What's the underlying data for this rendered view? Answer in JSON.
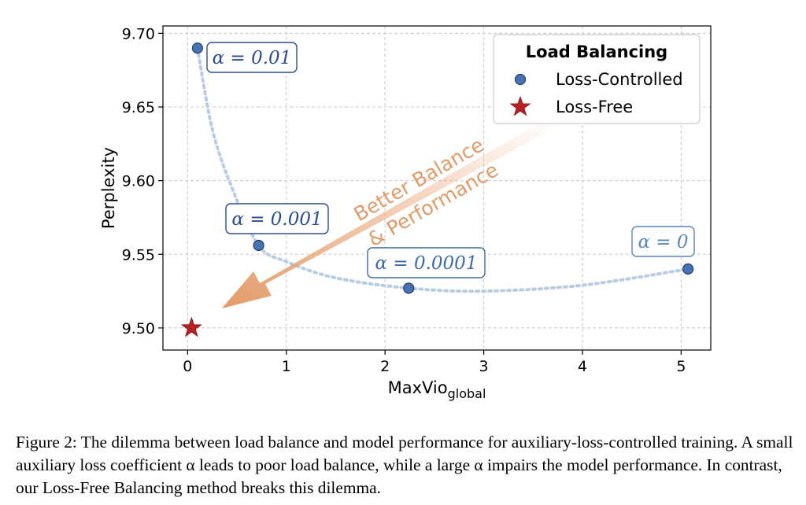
{
  "chart_data": {
    "type": "scatter",
    "xlabel": "MaxVio",
    "xlabel_sub": "global",
    "ylabel": "Perplexity",
    "xlim": [
      -0.25,
      5.3
    ],
    "ylim": [
      9.485,
      9.705
    ],
    "xticks": [
      0,
      1,
      2,
      3,
      4,
      5
    ],
    "yticks": [
      9.5,
      9.55,
      9.6,
      9.65,
      9.7
    ],
    "xtick_labels": [
      "0",
      "1",
      "2",
      "3",
      "4",
      "5"
    ],
    "ytick_labels": [
      "9.50",
      "9.55",
      "9.60",
      "9.65",
      "9.70"
    ],
    "grid": true,
    "legend_title": "Load Balancing",
    "legend_position": "top-right",
    "series": [
      {
        "name": "Loss-Controlled",
        "marker": "circle",
        "color": "#4a72b0",
        "points": [
          {
            "x": 0.1,
            "y": 9.69,
            "label": "α = 0.01"
          },
          {
            "x": 0.72,
            "y": 9.556,
            "label": "α = 0.001"
          },
          {
            "x": 2.24,
            "y": 9.527,
            "label": "α = 0.0001"
          },
          {
            "x": 5.07,
            "y": 9.54,
            "label": "α = 0"
          }
        ]
      },
      {
        "name": "Loss-Free",
        "marker": "star",
        "color": "#b52025",
        "points": [
          {
            "x": 0.04,
            "y": 9.5
          }
        ]
      }
    ],
    "trend_curve": {
      "style": "dotted",
      "color": "#b8cde4",
      "points": [
        [
          0.1,
          9.69
        ],
        [
          0.25,
          9.635
        ],
        [
          0.45,
          9.595
        ],
        [
          0.72,
          9.556
        ],
        [
          1.0,
          9.545
        ],
        [
          1.5,
          9.534
        ],
        [
          2.24,
          9.527
        ],
        [
          3.0,
          9.525
        ],
        [
          4.0,
          9.529
        ],
        [
          5.07,
          9.54
        ]
      ]
    },
    "arrow_annotation": {
      "text_line1": "Better Balance",
      "text_line2": "& Performance",
      "color": "#e29a68"
    }
  },
  "caption": "Figure 2: The dilemma between load balance and model performance for auxiliary-loss-controlled training. A small auxiliary loss coefficient α leads to poor load balance, while a large α impairs the model performance. In contrast, our Loss-Free Balancing method breaks this dilemma."
}
